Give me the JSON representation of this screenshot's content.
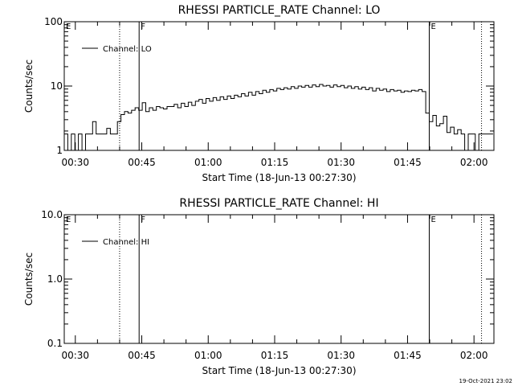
{
  "timestamp": "19-Oct-2021 23:02",
  "chart_data": [
    {
      "type": "line",
      "title": "RHESSI PARTICLE_RATE Channel: LO",
      "xlabel": "Start Time (18-Jun-13 00:27:30)",
      "ylabel": "Counts/sec",
      "yscale": "log",
      "ylim": [
        1,
        100
      ],
      "xlim_minutes": [
        0,
        97
      ],
      "x_unit": "minutes after start time",
      "xtick_labels": [
        "00:30",
        "00:45",
        "01:00",
        "01:15",
        "01:30",
        "01:45",
        "02:00"
      ],
      "xtick_minutes": [
        2.5,
        17.5,
        32.5,
        47.5,
        62.5,
        77.5,
        92.5
      ],
      "ytick_labels": [
        "1",
        "10",
        "100"
      ],
      "ytick_values": [
        1,
        10,
        100
      ],
      "legend": {
        "label": "Channel: LO",
        "placement": "top-left"
      },
      "series": [
        {
          "name": "Channel: LO",
          "x": [
            0,
            0.8,
            1.6,
            2.4,
            3.2,
            4,
            4.8,
            5.6,
            6.4,
            7.2,
            8,
            8.8,
            9.6,
            10.4,
            11.2,
            12,
            12.8,
            13.6,
            14.4,
            15.2,
            16,
            16.8,
            17.6,
            18.4,
            19.2,
            20,
            20.8,
            21.6,
            22.4,
            23.2,
            24,
            24.8,
            25.6,
            26.4,
            27.2,
            28,
            28.8,
            29.6,
            30.4,
            31.2,
            32,
            32.8,
            33.6,
            34.4,
            35.2,
            36,
            36.8,
            37.6,
            38.4,
            39.2,
            40,
            40.8,
            41.6,
            42.4,
            43.2,
            44,
            44.8,
            45.6,
            46.4,
            47.2,
            48,
            48.8,
            49.6,
            50.4,
            51.2,
            52,
            52.8,
            53.6,
            54.4,
            55.2,
            56,
            56.8,
            57.6,
            58.4,
            59.2,
            60,
            60.8,
            61.6,
            62.4,
            63.2,
            64,
            64.8,
            65.6,
            66.4,
            67.2,
            68,
            68.8,
            69.6,
            70.4,
            71.2,
            72,
            72.8,
            73.6,
            74.4,
            75.2,
            76,
            76.8,
            77.6,
            78.4,
            79.2,
            80,
            80.8,
            81.6,
            82.4,
            83.2,
            84,
            84.8,
            85.6,
            86.4,
            87.2,
            88,
            88.8,
            89.6,
            90.4,
            91.2,
            92,
            92.8,
            93.6,
            94.4,
            95.2,
            96
          ],
          "values": [
            1.8,
            1,
            1.8,
            1,
            1.8,
            1,
            1.8,
            1.8,
            2.8,
            1.8,
            1.8,
            1.8,
            2.2,
            1.8,
            1.8,
            2.8,
            3.6,
            4,
            3.8,
            4.2,
            4.6,
            4.2,
            5.5,
            4,
            4.6,
            4.2,
            4.8,
            4.6,
            4.4,
            4.8,
            4.8,
            5.2,
            4.6,
            5.4,
            4.8,
            5.6,
            5,
            5.8,
            6.2,
            5.4,
            6.4,
            5.8,
            6.6,
            6,
            6.8,
            6.2,
            7,
            6.4,
            7.2,
            6.8,
            7.6,
            7,
            8,
            7.2,
            8.2,
            7.6,
            8.6,
            8,
            8.8,
            8.4,
            9.2,
            8.8,
            9.4,
            9,
            9.8,
            9.2,
            10,
            9.6,
            10.2,
            9.6,
            10.4,
            9.8,
            10.6,
            10,
            10.2,
            9.6,
            10.4,
            9.8,
            10.2,
            9.4,
            10,
            9.2,
            9.8,
            9,
            9.6,
            8.8,
            9.4,
            8.4,
            9.2,
            8.6,
            9,
            8.2,
            8.8,
            8.4,
            8.6,
            8,
            8.4,
            8.2,
            8.6,
            8.4,
            8.8,
            8.2,
            3.8,
            2.8,
            3.5,
            2.4,
            2.6,
            3.4,
            1.9,
            2.3,
            1.8,
            2.1,
            1.8,
            1,
            1.8,
            1.8,
            1,
            1.8,
            1.8,
            1.8,
            1.8
          ]
        }
      ],
      "vlines": [
        {
          "minute": 12.5,
          "style": "dotted",
          "label": ""
        },
        {
          "minute": 16.9,
          "style": "solid",
          "label": "F"
        },
        {
          "minute": 82.4,
          "style": "solid",
          "label": "E"
        },
        {
          "minute": 94.2,
          "style": "dotted",
          "label": ""
        }
      ],
      "corner_label": "E"
    },
    {
      "type": "line",
      "title": "RHESSI PARTICLE_RATE Channel: HI",
      "xlabel": "Start Time (18-Jun-13 00:27:30)",
      "ylabel": "Counts/sec",
      "yscale": "log",
      "ylim": [
        0.1,
        10
      ],
      "xlim_minutes": [
        0,
        97
      ],
      "x_unit": "minutes after start time",
      "xtick_labels": [
        "00:30",
        "00:45",
        "01:00",
        "01:15",
        "01:30",
        "01:45",
        "02:00"
      ],
      "xtick_minutes": [
        2.5,
        17.5,
        32.5,
        47.5,
        62.5,
        77.5,
        92.5
      ],
      "ytick_labels": [
        "0.1",
        "1.0",
        "10.0"
      ],
      "ytick_values": [
        0.1,
        1,
        10
      ],
      "legend": {
        "label": "Channel: HI",
        "placement": "top-left"
      },
      "series": [
        {
          "name": "Channel: HI",
          "x": [],
          "values": []
        }
      ],
      "vlines": [
        {
          "minute": 12.5,
          "style": "dotted",
          "label": ""
        },
        {
          "minute": 16.9,
          "style": "solid",
          "label": "F"
        },
        {
          "minute": 82.4,
          "style": "solid",
          "label": "E"
        },
        {
          "minute": 94.2,
          "style": "dotted",
          "label": ""
        }
      ],
      "corner_label": "E"
    }
  ]
}
